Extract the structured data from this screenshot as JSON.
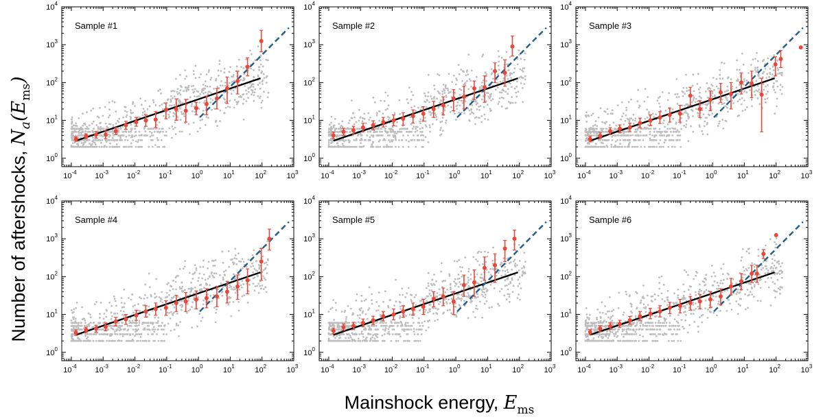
{
  "figure": {
    "ylabel_text": "Number of aftershocks, ",
    "ylabel_symbol": "N",
    "ylabel_subscript": "a",
    "ylabel_arg_open": "(",
    "ylabel_arg_symbol": "E",
    "ylabel_arg_subscript": "ms",
    "ylabel_arg_close": ")",
    "xlabel_text": "Mainshock energy, ",
    "xlabel_symbol": "E",
    "xlabel_subscript": "ms"
  },
  "colors": {
    "scatter": "#bdbdbd",
    "binned": "#e8473a",
    "fit_line": "#000000",
    "dashed_line": "#1f5d8c"
  },
  "chart_data": [
    {
      "type": "scatter",
      "title": "Sample #1",
      "xscale": "log",
      "yscale": "log",
      "xlim": [
        5e-05,
        1000
      ],
      "ylim": [
        0.6,
        10000
      ],
      "grid": false,
      "xticks": [
        0.0001,
        0.001,
        0.01,
        0.1,
        1,
        10,
        100,
        1000
      ],
      "yticks": [
        1,
        10,
        100,
        1000,
        10000
      ],
      "series": [
        {
          "x": [
            0.00014,
            0.00029,
            0.0006,
            0.0012,
            0.0025,
            0.0052,
            0.011,
            0.022,
            0.045,
            0.095,
            0.2,
            0.4,
            0.85,
            1.8,
            3.8,
            8,
            17,
            35,
            95
          ],
          "y": [
            3.2,
            3.8,
            4.2,
            4.2,
            5.2,
            7.5,
            9,
            10,
            10.5,
            19,
            20,
            18,
            21,
            27,
            38,
            70,
            110,
            260,
            1250
          ],
          "err_low": [
            2.8,
            3.3,
            3.4,
            3.3,
            4.2,
            5.8,
            7,
            7,
            6.5,
            11,
            10,
            9,
            14,
            14,
            20,
            28,
            50,
            150,
            650
          ],
          "err_high": [
            3.7,
            4.4,
            5.1,
            5.3,
            6.5,
            9.5,
            12,
            14,
            17,
            29,
            37,
            36,
            30,
            44,
            70,
            140,
            200,
            450,
            2400
          ]
        }
      ],
      "fit_line": {
        "x": [
          0.00014,
          90
        ],
        "y": [
          2.9,
          130
        ]
      },
      "dashed_line": {
        "x": [
          1.1,
          700
        ],
        "y": [
          12,
          2800
        ]
      }
    },
    {
      "type": "scatter",
      "title": "Sample #2",
      "xscale": "log",
      "yscale": "log",
      "xlim": [
        5e-05,
        1000
      ],
      "ylim": [
        0.6,
        10000
      ],
      "grid": false,
      "xticks": [
        0.0001,
        0.001,
        0.01,
        0.1,
        1,
        10,
        100,
        1000
      ],
      "yticks": [
        1,
        10,
        100,
        1000,
        10000
      ],
      "series": [
        {
          "x": [
            0.00014,
            0.00029,
            0.0006,
            0.0012,
            0.0025,
            0.0052,
            0.011,
            0.022,
            0.045,
            0.095,
            0.2,
            0.4,
            0.85,
            1.8,
            3.8,
            8,
            17,
            35,
            60
          ],
          "y": [
            4,
            5,
            5.5,
            6.5,
            7.5,
            9,
            10,
            11,
            13,
            15,
            20,
            25,
            38,
            42,
            70,
            75,
            200,
            180,
            900
          ],
          "err_low": [
            3.3,
            4,
            4.3,
            5,
            5.6,
            6.7,
            7.2,
            7.5,
            8.5,
            9.5,
            12,
            14,
            18,
            20,
            35,
            30,
            100,
            80,
            500
          ],
          "err_high": [
            4.9,
            6.2,
            7,
            8.4,
            9.8,
            12,
            14,
            16,
            19,
            23,
            32,
            42,
            65,
            80,
            110,
            150,
            330,
            400,
            1700
          ]
        }
      ],
      "fit_line": {
        "x": [
          0.00014,
          90
        ],
        "y": [
          2.9,
          130
        ]
      },
      "dashed_line": {
        "x": [
          1.1,
          700
        ],
        "y": [
          12,
          2800
        ]
      }
    },
    {
      "type": "scatter",
      "title": "Sample #3",
      "xscale": "log",
      "yscale": "log",
      "xlim": [
        5e-05,
        1000
      ],
      "ylim": [
        0.6,
        10000
      ],
      "grid": false,
      "xticks": [
        0.0001,
        0.001,
        0.01,
        0.1,
        1,
        10,
        100,
        1000
      ],
      "yticks": [
        1,
        10,
        100,
        1000,
        10000
      ],
      "series": [
        {
          "x": [
            0.00014,
            0.00029,
            0.0006,
            0.0012,
            0.0025,
            0.0052,
            0.011,
            0.022,
            0.045,
            0.095,
            0.2,
            0.4,
            0.85,
            1.8,
            3.8,
            8,
            17,
            35,
            95,
            140,
            600
          ],
          "y": [
            3.2,
            3.9,
            5.2,
            6,
            6.5,
            8.5,
            10,
            12,
            14,
            15,
            45,
            20,
            35,
            55,
            50,
            100,
            95,
            48,
            300,
            420,
            850
          ],
          "err_low": [
            2.7,
            3.3,
            4.2,
            4.7,
            5,
            6.3,
            7.2,
            8.3,
            9,
            9,
            25,
            12,
            18,
            30,
            20,
            50,
            40,
            5,
            150,
            250,
            850
          ],
          "err_high": [
            3.8,
            4.7,
            6.4,
            7.6,
            8.4,
            11.5,
            14,
            17,
            21,
            25,
            75,
            33,
            60,
            95,
            100,
            180,
            200,
            130,
            480,
            700,
            850
          ]
        }
      ],
      "fit_line": {
        "x": [
          0.00014,
          90
        ],
        "y": [
          2.9,
          130
        ]
      },
      "dashed_line": {
        "x": [
          1.1,
          700
        ],
        "y": [
          12,
          2800
        ]
      }
    },
    {
      "type": "scatter",
      "title": "Sample #4",
      "xscale": "log",
      "yscale": "log",
      "xlim": [
        5e-05,
        1000
      ],
      "ylim": [
        0.6,
        10000
      ],
      "grid": false,
      "xticks": [
        0.0001,
        0.001,
        0.01,
        0.1,
        1,
        10,
        100,
        1000
      ],
      "yticks": [
        1,
        10,
        100,
        1000,
        10000
      ],
      "series": [
        {
          "x": [
            0.00014,
            0.00029,
            0.0006,
            0.0012,
            0.0025,
            0.0052,
            0.011,
            0.022,
            0.045,
            0.095,
            0.2,
            0.4,
            0.85,
            1.8,
            3.8,
            8,
            17,
            35,
            95,
            170
          ],
          "y": [
            3.3,
            3.9,
            4.2,
            4.7,
            6.5,
            7.5,
            9.5,
            12,
            14,
            15,
            20,
            22,
            25,
            27,
            30,
            40,
            55,
            80,
            250,
            1000
          ],
          "err_low": [
            2.8,
            3.3,
            3.4,
            3.7,
            5,
            5.5,
            7,
            8.5,
            9.5,
            9.5,
            12,
            12,
            14,
            15,
            16,
            20,
            25,
            35,
            80,
            500
          ],
          "err_high": [
            3.9,
            4.6,
            5.2,
            5.9,
            8.4,
            10,
            13,
            17,
            20,
            23,
            32,
            38,
            42,
            48,
            55,
            75,
            110,
            160,
            550,
            1800
          ]
        }
      ],
      "fit_line": {
        "x": [
          0.00014,
          90
        ],
        "y": [
          2.9,
          130
        ]
      },
      "dashed_line": {
        "x": [
          1.1,
          700
        ],
        "y": [
          12,
          2800
        ]
      }
    },
    {
      "type": "scatter",
      "title": "Sample #5",
      "xscale": "log",
      "yscale": "log",
      "xlim": [
        5e-05,
        1000
      ],
      "ylim": [
        0.6,
        10000
      ],
      "grid": false,
      "xticks": [
        0.0001,
        0.001,
        0.01,
        0.1,
        1,
        10,
        100,
        1000
      ],
      "yticks": [
        1,
        10,
        100,
        1000,
        10000
      ],
      "series": [
        {
          "x": [
            0.00014,
            0.00029,
            0.0006,
            0.0012,
            0.0025,
            0.0052,
            0.011,
            0.022,
            0.045,
            0.095,
            0.2,
            0.4,
            0.85,
            1.8,
            3.8,
            8,
            17,
            35,
            70
          ],
          "y": [
            3.7,
            4.6,
            5,
            6,
            7,
            9,
            10,
            12,
            14,
            16,
            26,
            30,
            22,
            60,
            70,
            170,
            200,
            550,
            1000
          ],
          "err_low": [
            3.1,
            3.8,
            4,
            4.7,
            5.4,
            6.7,
            7.2,
            8.4,
            9.5,
            10,
            16,
            17,
            10,
            30,
            30,
            80,
            70,
            250,
            500
          ],
          "err_high": [
            4.4,
            5.6,
            6.2,
            7.6,
            9,
            12,
            14,
            17,
            20,
            25,
            40,
            50,
            40,
            110,
            150,
            330,
            400,
            900,
            1700
          ]
        }
      ],
      "fit_line": {
        "x": [
          0.00014,
          90
        ],
        "y": [
          2.9,
          130
        ]
      },
      "dashed_line": {
        "x": [
          1.1,
          700
        ],
        "y": [
          12,
          2800
        ]
      }
    },
    {
      "type": "scatter",
      "title": "Sample #6",
      "xscale": "log",
      "yscale": "log",
      "xlim": [
        5e-05,
        1000
      ],
      "ylim": [
        0.6,
        10000
      ],
      "grid": false,
      "xticks": [
        0.0001,
        0.001,
        0.01,
        0.1,
        1,
        10,
        100,
        1000
      ],
      "yticks": [
        1,
        10,
        100,
        1000,
        10000
      ],
      "series": [
        {
          "x": [
            0.00014,
            0.00029,
            0.0006,
            0.0012,
            0.0025,
            0.0052,
            0.011,
            0.022,
            0.045,
            0.095,
            0.2,
            0.4,
            0.85,
            1.8,
            3.8,
            8,
            17,
            25,
            40,
            100
          ],
          "y": [
            3.4,
            4.2,
            4.9,
            5.6,
            7,
            9,
            10.5,
            12,
            15,
            17,
            20,
            22,
            25,
            30,
            55,
            75,
            120,
            120,
            400,
            1250
          ],
          "err_low": [
            2.9,
            3.5,
            4,
            4.5,
            5.5,
            6.8,
            7.7,
            8.6,
            10.5,
            11,
            13,
            14,
            15,
            18,
            33,
            45,
            70,
            70,
            300,
            1250
          ],
          "err_high": [
            4,
            5,
            6,
            7,
            8.9,
            12,
            14.5,
            17,
            21,
            25,
            30,
            34,
            40,
            48,
            90,
            120,
            200,
            200,
            520,
            1250
          ]
        }
      ],
      "fit_line": {
        "x": [
          0.00014,
          90
        ],
        "y": [
          2.9,
          130
        ]
      },
      "dashed_line": {
        "x": [
          1.1,
          700
        ],
        "y": [
          12,
          2800
        ]
      }
    }
  ]
}
